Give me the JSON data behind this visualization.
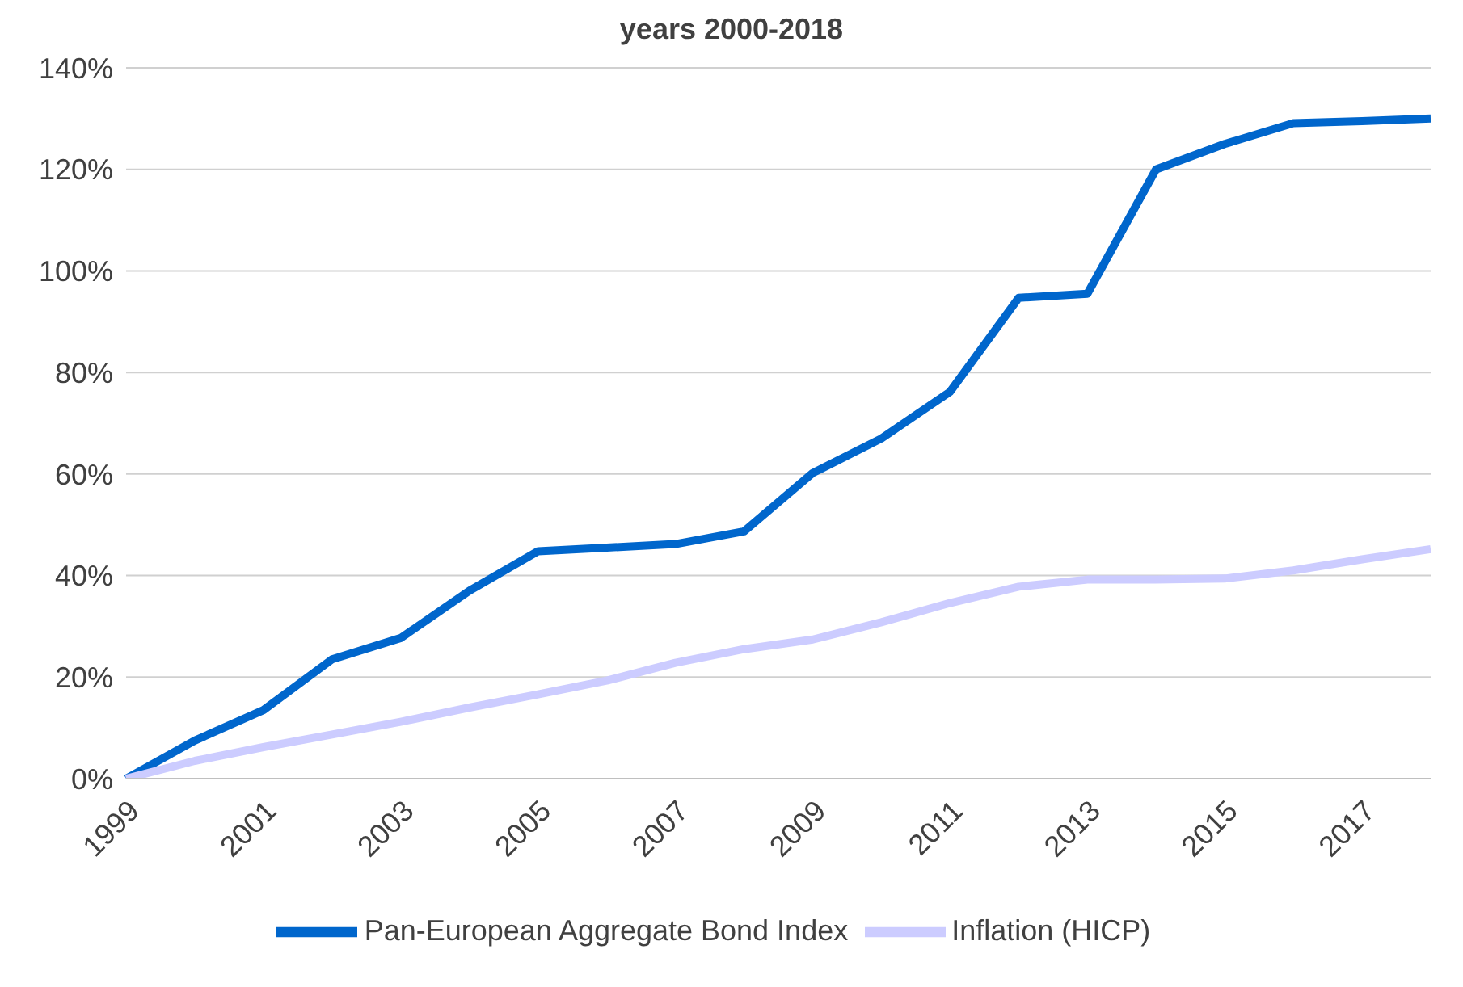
{
  "chart_data": {
    "type": "line",
    "title": "years 2000-2018",
    "categories": [
      "1999",
      null,
      "2001",
      null,
      "2003",
      null,
      "2005",
      null,
      "2007",
      null,
      "2009",
      null,
      "2011",
      null,
      "2013",
      null,
      "2015",
      null,
      "2017",
      null
    ],
    "series": [
      {
        "name": "Pan-European Aggregate Bond Index",
        "color": "#0066cc",
        "values": [
          0,
          7.5,
          13.5,
          23.5,
          27.7,
          37,
          44.8,
          45.5,
          46.2,
          48.7,
          60.2,
          67,
          76.2,
          94.7,
          95.5,
          120,
          125,
          129.1,
          129.5,
          130
        ]
      },
      {
        "name": "Inflation (HICP)",
        "color": "#ccccff",
        "values": [
          0,
          3.5,
          6.2,
          8.7,
          11.2,
          14,
          16.6,
          19.3,
          22.8,
          25.5,
          27.4,
          30.8,
          34.6,
          37.8,
          39.2,
          39.2,
          39.4,
          41,
          43.2,
          45.2
        ]
      }
    ],
    "ylim": [
      0,
      140
    ],
    "yticks": [
      {
        "value": 0,
        "label": "0%"
      },
      {
        "value": 20,
        "label": "20%"
      },
      {
        "value": 40,
        "label": "40%"
      },
      {
        "value": 60,
        "label": "60%"
      },
      {
        "value": 80,
        "label": "80%"
      },
      {
        "value": 100,
        "label": "100%"
      },
      {
        "value": 120,
        "label": "120%"
      },
      {
        "value": 140,
        "label": "140%"
      }
    ],
    "grid": "y",
    "legend": "bottom",
    "marker": "none",
    "line_style": "solid"
  }
}
